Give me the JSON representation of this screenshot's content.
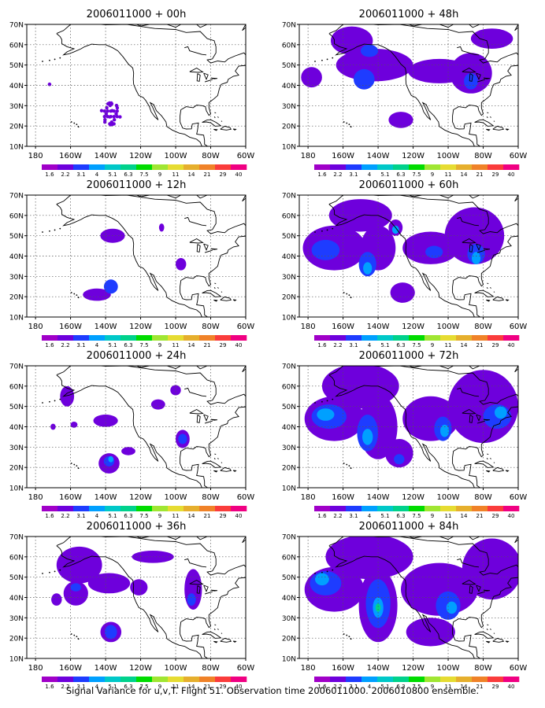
{
  "footer": "Signal Variance for u,v,T. Flight 51. Observation time 2006011000. 2006010800 ensemble.",
  "lat_labels": [
    "70N",
    "60N",
    "50N",
    "40N",
    "30N",
    "20N",
    "10N"
  ],
  "lon_labels": [
    "180",
    "160W",
    "140W",
    "120W",
    "100W",
    "80W",
    "60W"
  ],
  "colorbar": {
    "labels": [
      "1.6",
      "2.2",
      "3.1",
      "4",
      "5.1",
      "6.3",
      "7.5",
      "9",
      "11",
      "14",
      "21",
      "29",
      "40"
    ],
    "colors": [
      "#a000c8",
      "#6e00dc",
      "#1e3cff",
      "#00a0ff",
      "#00c8c8",
      "#00d28c",
      "#00dc00",
      "#a0e632",
      "#e6dc32",
      "#e6af2d",
      "#f08228",
      "#fa3c3c",
      "#f00082"
    ]
  },
  "panels": [
    {
      "title": "2006011000 + 00h",
      "column": 0,
      "row": 0,
      "blobs": [
        {
          "lon": -172,
          "lat": 40.5,
          "rx": 0.9,
          "ry": 0.9,
          "level": 1,
          "dot": true
        },
        {
          "lon": -137,
          "lat": 26,
          "rx": 5,
          "ry": 6,
          "level": 1,
          "dot": true
        }
      ]
    },
    {
      "title": "2006011000 + 12h",
      "column": 0,
      "row": 1,
      "blobs": [
        {
          "lon": -136,
          "lat": 50,
          "rx": 7,
          "ry": 3.5,
          "level": 1
        },
        {
          "lon": -108,
          "lat": 54,
          "rx": 1.5,
          "ry": 2,
          "level": 1
        },
        {
          "lon": -97,
          "lat": 36,
          "rx": 3,
          "ry": 3,
          "level": 1
        },
        {
          "lon": -145,
          "lat": 21,
          "rx": 8,
          "ry": 3,
          "level": 1
        },
        {
          "lon": -137,
          "lat": 25,
          "rx": 4,
          "ry": 3.5,
          "level": 2
        }
      ]
    },
    {
      "title": "2006011000 + 24h",
      "column": 0,
      "row": 2,
      "blobs": [
        {
          "lon": -162,
          "lat": 55,
          "rx": 4,
          "ry": 5,
          "level": 1
        },
        {
          "lon": -170,
          "lat": 40,
          "rx": 1.5,
          "ry": 1.5,
          "level": 1
        },
        {
          "lon": -158,
          "lat": 41,
          "rx": 2,
          "ry": 1.5,
          "level": 1
        },
        {
          "lon": -140,
          "lat": 43,
          "rx": 7,
          "ry": 3,
          "level": 1
        },
        {
          "lon": -110,
          "lat": 51,
          "rx": 4,
          "ry": 2.5,
          "level": 1
        },
        {
          "lon": -100,
          "lat": 58,
          "rx": 3,
          "ry": 2.5,
          "level": 1
        },
        {
          "lon": -96,
          "lat": 34,
          "rx": 4,
          "ry": 4.5,
          "level": 1
        },
        {
          "lon": -96,
          "lat": 34,
          "rx": 2.5,
          "ry": 2.5,
          "level": 2
        },
        {
          "lon": -138,
          "lat": 22,
          "rx": 6,
          "ry": 5,
          "level": 1
        },
        {
          "lon": -127,
          "lat": 28,
          "rx": 4,
          "ry": 2,
          "level": 1
        },
        {
          "lon": -138,
          "lat": 23,
          "rx": 3,
          "ry": 2.5,
          "level": 2
        },
        {
          "lon": -137,
          "lat": 24,
          "rx": 1.5,
          "ry": 1.5,
          "level": 3
        }
      ]
    },
    {
      "title": "2006011000 + 36h",
      "column": 0,
      "row": 3,
      "blobs": [
        {
          "lon": -155,
          "lat": 56,
          "rx": 13,
          "ry": 9,
          "level": 1
        },
        {
          "lon": -138,
          "lat": 47,
          "rx": 12,
          "ry": 5,
          "level": 1
        },
        {
          "lon": -168,
          "lat": 39,
          "rx": 3,
          "ry": 3,
          "level": 1
        },
        {
          "lon": -157,
          "lat": 42,
          "rx": 7,
          "ry": 6,
          "level": 1
        },
        {
          "lon": -121,
          "lat": 45,
          "rx": 5,
          "ry": 4,
          "level": 1
        },
        {
          "lon": -113,
          "lat": 60,
          "rx": 12,
          "ry": 3,
          "level": 1
        },
        {
          "lon": -90,
          "lat": 44,
          "rx": 5,
          "ry": 10,
          "level": 1
        },
        {
          "lon": -137,
          "lat": 23,
          "rx": 6,
          "ry": 5,
          "level": 1
        },
        {
          "lon": -137,
          "lat": 23,
          "rx": 3.5,
          "ry": 3.5,
          "level": 2
        },
        {
          "lon": -91,
          "lat": 39,
          "rx": 2.5,
          "ry": 3,
          "level": 2
        },
        {
          "lon": -157,
          "lat": 45,
          "rx": 3,
          "ry": 2,
          "level": 2
        }
      ]
    },
    {
      "title": "2006011000 + 48h",
      "column": 1,
      "row": 0,
      "blobs": [
        {
          "lon": -155,
          "lat": 62,
          "rx": 12,
          "ry": 7,
          "level": 1
        },
        {
          "lon": -142,
          "lat": 50,
          "rx": 22,
          "ry": 8,
          "level": 1
        },
        {
          "lon": -178,
          "lat": 44,
          "rx": 6,
          "ry": 5,
          "level": 1
        },
        {
          "lon": -105,
          "lat": 47,
          "rx": 18,
          "ry": 6,
          "level": 1
        },
        {
          "lon": -87,
          "lat": 46,
          "rx": 12,
          "ry": 10,
          "level": 1
        },
        {
          "lon": -75,
          "lat": 63,
          "rx": 12,
          "ry": 5,
          "level": 1
        },
        {
          "lon": -127,
          "lat": 23,
          "rx": 7,
          "ry": 4,
          "level": 1
        },
        {
          "lon": -148,
          "lat": 43,
          "rx": 6,
          "ry": 5,
          "level": 2
        },
        {
          "lon": -87,
          "lat": 42,
          "rx": 4,
          "ry": 4,
          "level": 2
        },
        {
          "lon": -145,
          "lat": 57,
          "rx": 5,
          "ry": 3,
          "level": 2
        }
      ]
    },
    {
      "title": "2006011000 + 60h",
      "column": 1,
      "row": 1,
      "blobs": [
        {
          "lon": -150,
          "lat": 60,
          "rx": 18,
          "ry": 8,
          "level": 1
        },
        {
          "lon": -165,
          "lat": 44,
          "rx": 18,
          "ry": 11,
          "level": 1
        },
        {
          "lon": -140,
          "lat": 44,
          "rx": 10,
          "ry": 11,
          "level": 1
        },
        {
          "lon": -110,
          "lat": 44,
          "rx": 16,
          "ry": 8,
          "level": 1
        },
        {
          "lon": -85,
          "lat": 50,
          "rx": 17,
          "ry": 14,
          "level": 1
        },
        {
          "lon": -126,
          "lat": 22,
          "rx": 7,
          "ry": 5,
          "level": 1
        },
        {
          "lon": -130,
          "lat": 54,
          "rx": 4,
          "ry": 4,
          "level": 1
        },
        {
          "lon": -170,
          "lat": 43,
          "rx": 8,
          "ry": 5,
          "level": 2
        },
        {
          "lon": -146,
          "lat": 36,
          "rx": 5,
          "ry": 6,
          "level": 2
        },
        {
          "lon": -108,
          "lat": 42,
          "rx": 5,
          "ry": 3,
          "level": 2
        },
        {
          "lon": -84,
          "lat": 41,
          "rx": 5,
          "ry": 5,
          "level": 2
        },
        {
          "lon": -130,
          "lat": 53,
          "rx": 2,
          "ry": 2,
          "level": 3
        },
        {
          "lon": -146,
          "lat": 34,
          "rx": 2.5,
          "ry": 3,
          "level": 3
        },
        {
          "lon": -84,
          "lat": 39,
          "rx": 2.5,
          "ry": 3,
          "level": 3
        }
      ]
    },
    {
      "title": "2006011000 + 72h",
      "column": 1,
      "row": 2,
      "blobs": [
        {
          "lon": -150,
          "lat": 60,
          "rx": 22,
          "ry": 11,
          "level": 1
        },
        {
          "lon": -165,
          "lat": 44,
          "rx": 17,
          "ry": 11,
          "level": 1
        },
        {
          "lon": -140,
          "lat": 40,
          "rx": 11,
          "ry": 16,
          "level": 1
        },
        {
          "lon": -110,
          "lat": 44,
          "rx": 16,
          "ry": 11,
          "level": 1
        },
        {
          "lon": -80,
          "lat": 50,
          "rx": 20,
          "ry": 18,
          "level": 1
        },
        {
          "lon": -128,
          "lat": 27,
          "rx": 8,
          "ry": 7,
          "level": 1
        },
        {
          "lon": -168,
          "lat": 45,
          "rx": 10,
          "ry": 6,
          "level": 2
        },
        {
          "lon": -146,
          "lat": 37,
          "rx": 6,
          "ry": 9,
          "level": 2
        },
        {
          "lon": -103,
          "lat": 39,
          "rx": 5,
          "ry": 6,
          "level": 2
        },
        {
          "lon": -72,
          "lat": 45,
          "rx": 8,
          "ry": 6,
          "level": 2
        },
        {
          "lon": -128,
          "lat": 24,
          "rx": 3,
          "ry": 2.5,
          "level": 2
        },
        {
          "lon": -170,
          "lat": 46,
          "rx": 5,
          "ry": 3,
          "level": 3
        },
        {
          "lon": -146,
          "lat": 35,
          "rx": 3,
          "ry": 4,
          "level": 3
        },
        {
          "lon": -102,
          "lat": 38,
          "rx": 2.5,
          "ry": 3,
          "level": 3
        },
        {
          "lon": -70,
          "lat": 47,
          "rx": 3.5,
          "ry": 3,
          "level": 3
        }
      ]
    },
    {
      "title": "2006011000 + 84h",
      "column": 1,
      "row": 3,
      "blobs": [
        {
          "lon": -145,
          "lat": 60,
          "rx": 25,
          "ry": 11,
          "level": 1
        },
        {
          "lon": -165,
          "lat": 44,
          "rx": 17,
          "ry": 11,
          "level": 1
        },
        {
          "lon": -140,
          "lat": 36,
          "rx": 11,
          "ry": 18,
          "level": 1
        },
        {
          "lon": -105,
          "lat": 44,
          "rx": 22,
          "ry": 13,
          "level": 1
        },
        {
          "lon": -75,
          "lat": 54,
          "rx": 17,
          "ry": 15,
          "level": 1
        },
        {
          "lon": -110,
          "lat": 23,
          "rx": 14,
          "ry": 7,
          "level": 1
        },
        {
          "lon": -170,
          "lat": 47,
          "rx": 9,
          "ry": 6,
          "level": 2
        },
        {
          "lon": -140,
          "lat": 37,
          "rx": 7,
          "ry": 12,
          "level": 2
        },
        {
          "lon": -100,
          "lat": 36,
          "rx": 7,
          "ry": 7,
          "level": 2
        },
        {
          "lon": -172,
          "lat": 49,
          "rx": 4,
          "ry": 3,
          "level": 3
        },
        {
          "lon": -140,
          "lat": 35,
          "rx": 3,
          "ry": 5,
          "level": 3
        },
        {
          "lon": -98,
          "lat": 35,
          "rx": 3,
          "ry": 3,
          "level": 3
        },
        {
          "lon": -140,
          "lat": 35,
          "rx": 1.5,
          "ry": 2,
          "level": 5
        }
      ]
    }
  ]
}
